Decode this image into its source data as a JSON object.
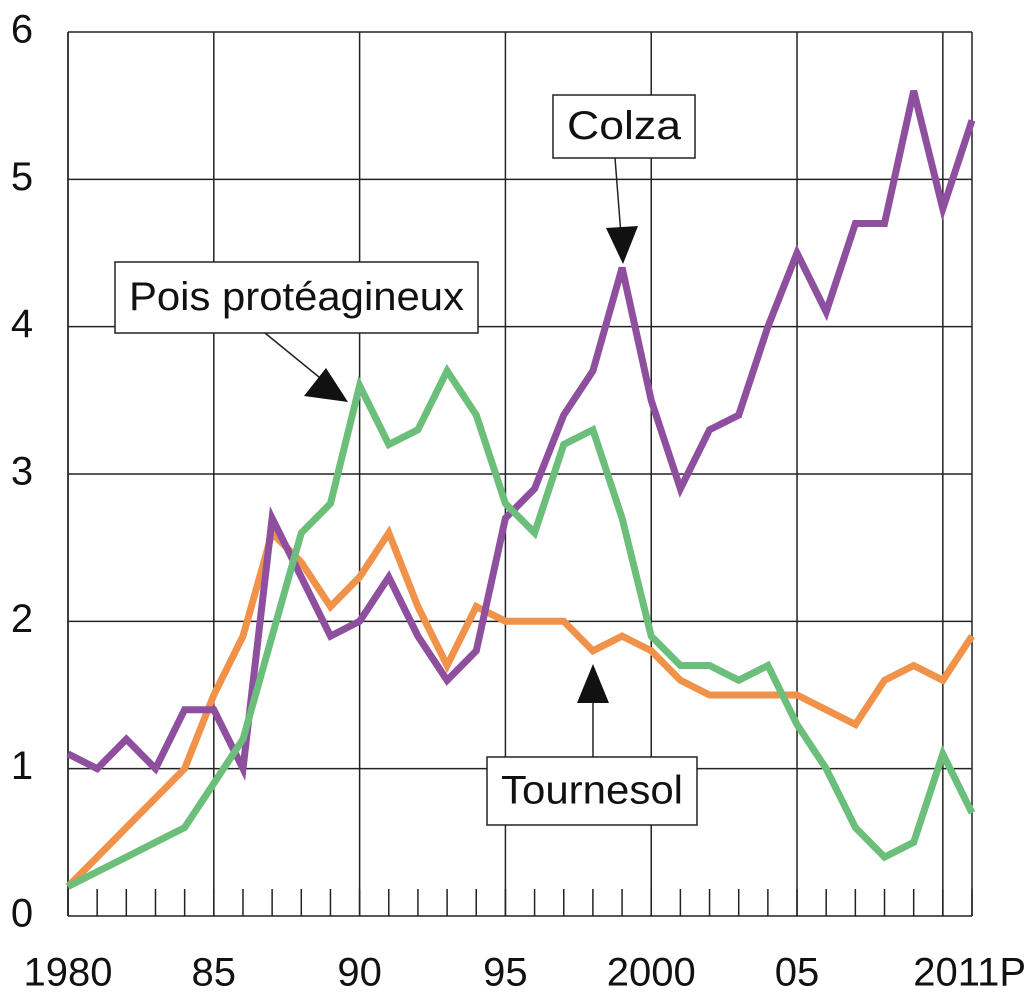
{
  "chart_data": {
    "type": "line",
    "x": [
      1980,
      1981,
      1982,
      1983,
      1984,
      1985,
      1986,
      1987,
      1988,
      1989,
      1990,
      1991,
      1992,
      1993,
      1994,
      1995,
      1996,
      1997,
      1998,
      1999,
      2000,
      2001,
      2002,
      2003,
      2004,
      2005,
      2006,
      2007,
      2008,
      2009,
      2010,
      2011
    ],
    "series": [
      {
        "name": "Colza",
        "color": "#8e4f9e",
        "values": [
          1.1,
          1.0,
          1.2,
          1.0,
          1.4,
          1.4,
          1.0,
          2.7,
          2.3,
          1.9,
          2.0,
          2.3,
          1.9,
          1.6,
          1.8,
          2.7,
          2.9,
          3.4,
          3.7,
          4.4,
          3.5,
          2.9,
          3.3,
          3.4,
          4.0,
          4.5,
          4.1,
          4.7,
          4.7,
          5.6,
          4.8,
          5.4
        ]
      },
      {
        "name": "Tournesol",
        "color": "#f0924a",
        "values": [
          0.2,
          0.4,
          0.6,
          0.8,
          1.0,
          1.5,
          1.9,
          2.6,
          2.4,
          2.1,
          2.3,
          2.6,
          2.1,
          1.7,
          2.1,
          2.0,
          2.0,
          2.0,
          1.8,
          1.9,
          1.8,
          1.6,
          1.5,
          1.5,
          1.5,
          1.5,
          1.4,
          1.3,
          1.6,
          1.7,
          1.6,
          1.9
        ]
      },
      {
        "name": "Pois protéagineux",
        "color": "#6bbf7a",
        "values": [
          0.2,
          0.3,
          0.4,
          0.5,
          0.6,
          0.9,
          1.2,
          1.9,
          2.6,
          2.8,
          3.6,
          3.2,
          3.3,
          3.7,
          3.4,
          2.8,
          2.6,
          3.2,
          3.3,
          2.7,
          1.9,
          1.7,
          1.7,
          1.6,
          1.7,
          1.3,
          1.0,
          0.6,
          0.4,
          0.5,
          1.1,
          0.7
        ]
      }
    ],
    "xlim": [
      1980,
      2011
    ],
    "xticks": [
      1980,
      {
        "value": 1985,
        "label": "85"
      },
      {
        "value": 1990,
        "label": "90"
      },
      {
        "value": 1995,
        "label": "95"
      },
      2000,
      {
        "value": 2005,
        "label": "05"
      },
      {
        "value": 2011,
        "label": "2011P"
      }
    ],
    "ylim": [
      0,
      6
    ],
    "yticks": [
      0,
      1,
      2,
      3,
      4,
      5,
      6
    ],
    "grid": true
  }
}
